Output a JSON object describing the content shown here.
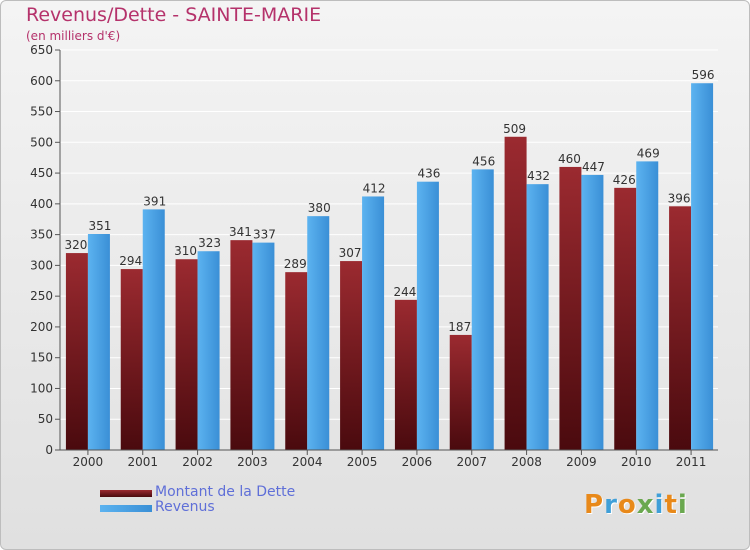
{
  "header": {
    "title": "Revenus/Dette - SAINTE-MARIE",
    "subtitle": "(en milliers d'€)"
  },
  "logo": {
    "text": "Proxiti",
    "colors": [
      "#e8891a",
      "#3f9fd8",
      "#e8891a",
      "#6aa84f",
      "#3f9fd8",
      "#e8891a",
      "#6aa84f"
    ]
  },
  "colors": {
    "dette": "#7a1a1f",
    "revenus": "#4fa3e3",
    "title": "#b5326b",
    "legend_text": "#5f6fd8"
  },
  "chart_data": {
    "type": "bar",
    "title": "Revenus/Dette - SAINTE-MARIE",
    "subtitle": "(en milliers d'€)",
    "categories": [
      "2000",
      "2001",
      "2002",
      "2003",
      "2004",
      "2005",
      "2006",
      "2007",
      "2008",
      "2009",
      "2010",
      "2011"
    ],
    "series": [
      {
        "name": "Montant de la Dette",
        "values": [
          320,
          294,
          310,
          341,
          289,
          307,
          244,
          187,
          509,
          460,
          426,
          396
        ]
      },
      {
        "name": "Revenus",
        "values": [
          351,
          391,
          323,
          337,
          380,
          412,
          436,
          456,
          432,
          447,
          469,
          596
        ]
      }
    ],
    "ylim": [
      0,
      650
    ],
    "yticks": [
      0,
      50,
      100,
      150,
      200,
      250,
      300,
      350,
      400,
      450,
      500,
      550,
      600,
      650
    ],
    "grid": true,
    "data_labels": true,
    "legend_position": "bottom-left"
  }
}
